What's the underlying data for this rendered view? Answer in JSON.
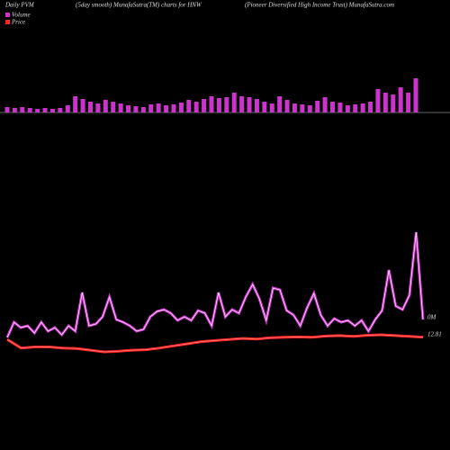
{
  "chart_data": {
    "type": "pvm",
    "title": "Daily PVM",
    "subtitle": "(5day smooth) MunafaSutra(TM) charts for HNW",
    "source": "(Pioneer Diversified High Income  Trust) MunafaSutra.com",
    "pvm": {
      "color": "#cc33cc",
      "negative_color": "#33cc33",
      "values": [
        6,
        5,
        6,
        5,
        4,
        5,
        4,
        5,
        8,
        18,
        15,
        12,
        10,
        14,
        12,
        10,
        8,
        7,
        6,
        9,
        10,
        8,
        9,
        11,
        14,
        12,
        15,
        18,
        16,
        17,
        22,
        18,
        17,
        15,
        12,
        10,
        18,
        14,
        10,
        9,
        8,
        13,
        17,
        12,
        11,
        8,
        9,
        10,
        12,
        26,
        22,
        20,
        28,
        22,
        38
      ]
    },
    "series": [
      {
        "name": "Volume",
        "color": "#cc33cc",
        "values": [
          25,
          42,
          36,
          38,
          30,
          42,
          32,
          36,
          28,
          38,
          32,
          75,
          38,
          40,
          48,
          70,
          45,
          42,
          38,
          32,
          34,
          48,
          54,
          56,
          52,
          44,
          48,
          44,
          55,
          52,
          38,
          75,
          48,
          56,
          52,
          70,
          84,
          68,
          44,
          80,
          78,
          55,
          50,
          38,
          58,
          74,
          50,
          38,
          46,
          42,
          44,
          38,
          44,
          32,
          45,
          55,
          100,
          60,
          56,
          72,
          142,
          45
        ],
        "value_label": "0M"
      },
      {
        "name": "Price",
        "color": "#ff2222",
        "values": [
          12.7,
          12.3,
          12.35,
          12.35,
          12.3,
          12.28,
          12.2,
          12.12,
          12.15,
          12.2,
          12.22,
          12.3,
          12.4,
          12.5,
          12.6,
          12.65,
          12.7,
          12.75,
          12.72,
          12.78,
          12.8,
          12.82,
          12.8,
          12.86,
          12.88,
          12.85,
          12.9,
          12.92,
          12.88,
          12.85,
          12.81
        ]
      }
    ]
  }
}
